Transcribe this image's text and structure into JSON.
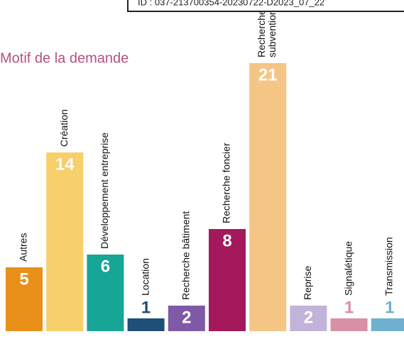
{
  "chart_data": {
    "type": "bar",
    "title": "Motif de la demande",
    "annotation": "ID : 037-213700354-20230722-D2023_07_22",
    "categories": [
      "Autres",
      "Création",
      "Développement entreprise",
      "Location",
      "Recherche bâtiment",
      "Recherche foncier",
      "Recherche subvention",
      "Reprise",
      "Signalétique",
      "Transmission"
    ],
    "values": [
      5,
      14,
      6,
      1,
      2,
      8,
      21,
      2,
      1,
      1
    ],
    "colors": [
      "#e8901a",
      "#f7cf6b",
      "#17a595",
      "#1f4e79",
      "#7e5aa6",
      "#a3195b",
      "#f5c586",
      "#c1b3d9",
      "#d98fa6",
      "#6fb0d1"
    ],
    "ylim": [
      0,
      21
    ]
  }
}
